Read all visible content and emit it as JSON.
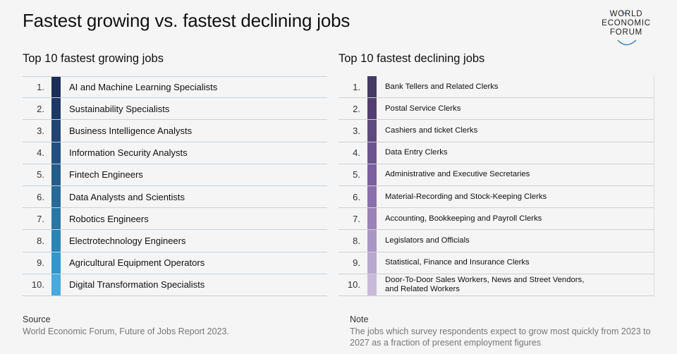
{
  "title": "Fastest growing vs. fastest declining jobs",
  "logo": {
    "line1": "WORLD",
    "line2": "ECONOMIC",
    "line3": "FORUM"
  },
  "growing": {
    "heading": "Top 10 fastest growing jobs",
    "rows": [
      {
        "num": "1.",
        "label": "AI and Machine Learning Specialists",
        "color": "#1c2d5a"
      },
      {
        "num": "2.",
        "label": "Sustainability Specialists",
        "color": "#1e3866"
      },
      {
        "num": "3.",
        "label": "Business Intelligence Analysts",
        "color": "#214473"
      },
      {
        "num": "4.",
        "label": "Information Security Analysts",
        "color": "#23507f"
      },
      {
        "num": "5.",
        "label": "Fintech Engineers",
        "color": "#255d8b"
      },
      {
        "num": "6.",
        "label": "Data Analysts and Scientists",
        "color": "#276a97"
      },
      {
        "num": "7.",
        "label": "Robotics Engineers",
        "color": "#2977a4"
      },
      {
        "num": "8.",
        "label": "Electrotechnology Engineers",
        "color": "#2b86b4"
      },
      {
        "num": "9.",
        "label": "Agricultural Equipment Operators",
        "color": "#3097cd"
      },
      {
        "num": "10.",
        "label": "Digital Transformation Specialists",
        "color": "#4aa9dd"
      }
    ]
  },
  "declining": {
    "heading": "Top 10 fastest declining jobs",
    "rows": [
      {
        "num": "1.",
        "label": "Bank Tellers and Related Clerks",
        "color": "#453a63"
      },
      {
        "num": "2.",
        "label": "Postal Service Clerks",
        "color": "#523f70"
      },
      {
        "num": "3.",
        "label": "Cashiers and ticket Clerks",
        "color": "#5f4a80"
      },
      {
        "num": "4.",
        "label": "Data Entry Clerks",
        "color": "#6d5590"
      },
      {
        "num": "5.",
        "label": "Administrative and Executive Secretaries",
        "color": "#7b5f9e"
      },
      {
        "num": "6.",
        "label": "Material-Recording and Stock-Keeping Clerks",
        "color": "#8a6fac"
      },
      {
        "num": "7.",
        "label": "Accounting, Bookkeeping and Payroll Clerks",
        "color": "#9a82b8"
      },
      {
        "num": "8.",
        "label": "Legislators and Officials",
        "color": "#aa96c4"
      },
      {
        "num": "9.",
        "label": "Statistical, Finance and Insurance Clerks",
        "color": "#b9a8cf"
      },
      {
        "num": "10.",
        "label": "Door-To-Door Sales Workers, News and Street Vendors, and Related Workers",
        "color": "#c8b9d9"
      }
    ]
  },
  "source": {
    "heading": "Source",
    "text": "World Economic Forum, Future of Jobs Report 2023."
  },
  "note": {
    "heading": "Note",
    "text": "The jobs which survey respondents expect to grow most quickly from 2023 to 2027 as a fraction of present employment figures"
  }
}
